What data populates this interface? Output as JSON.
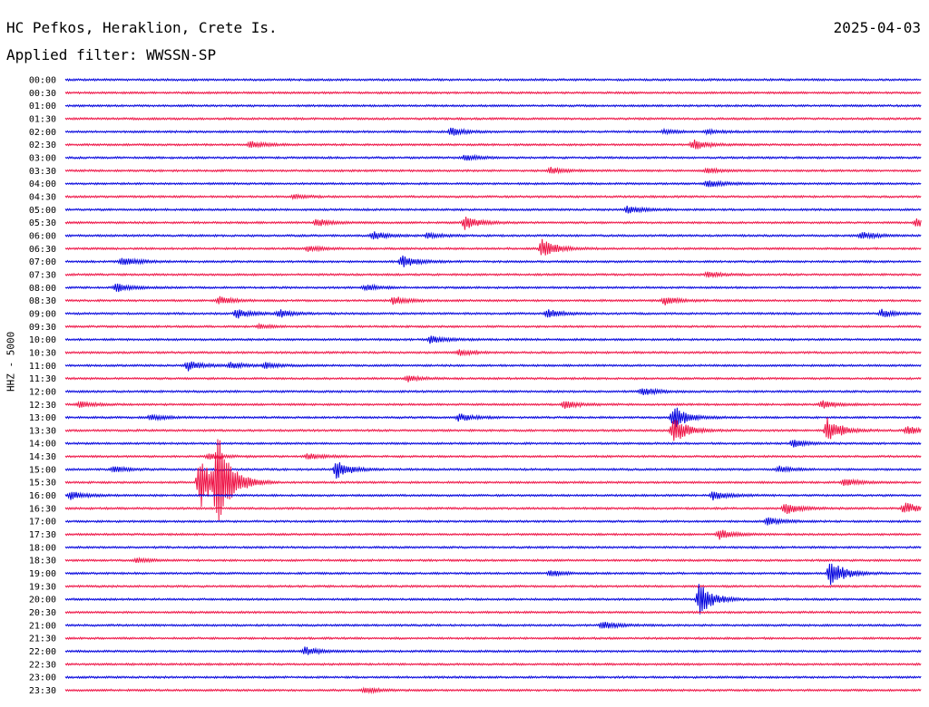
{
  "header": {
    "station": "HC Pefkos, Heraklion, Crete Is.",
    "date": "2025-04-03",
    "filter": "Applied filter: WWSSN-SP"
  },
  "colors": {
    "trace_a": "#0000dd",
    "trace_b": "#ee1144"
  },
  "chart_data": {
    "type": "line",
    "ylabel": "HHZ - 5000",
    "row_labels": [
      "00:00",
      "00:30",
      "01:00",
      "01:30",
      "02:00",
      "02:30",
      "03:00",
      "03:30",
      "04:00",
      "04:30",
      "05:00",
      "05:30",
      "06:00",
      "06:30",
      "07:00",
      "07:30",
      "08:00",
      "08:30",
      "09:00",
      "09:30",
      "10:00",
      "10:30",
      "11:00",
      "11:30",
      "12:00",
      "12:30",
      "13:00",
      "13:30",
      "14:00",
      "14:30",
      "15:00",
      "15:30",
      "16:00",
      "16:30",
      "17:00",
      "17:30",
      "18:00",
      "18:30",
      "19:00",
      "19:30",
      "20:00",
      "20:30",
      "21:00",
      "21:30",
      "22:00",
      "22:30",
      "23:00",
      "23:30"
    ],
    "row_minutes": 30,
    "events": [
      {
        "row": 4,
        "minute": 13.5,
        "amp": 4
      },
      {
        "row": 4,
        "minute": 21.0,
        "amp": 2
      },
      {
        "row": 4,
        "minute": 22.5,
        "amp": 2
      },
      {
        "row": 5,
        "minute": 6.5,
        "amp": 4
      },
      {
        "row": 5,
        "minute": 22.0,
        "amp": 5
      },
      {
        "row": 6,
        "minute": 14.0,
        "amp": 3
      },
      {
        "row": 7,
        "minute": 17.0,
        "amp": 3
      },
      {
        "row": 7,
        "minute": 22.5,
        "amp": 3
      },
      {
        "row": 8,
        "minute": 22.5,
        "amp": 4
      },
      {
        "row": 9,
        "minute": 8.0,
        "amp": 2
      },
      {
        "row": 10,
        "minute": 19.7,
        "amp": 4
      },
      {
        "row": 11,
        "minute": 8.8,
        "amp": 4
      },
      {
        "row": 11,
        "minute": 14.0,
        "amp": 7
      },
      {
        "row": 11,
        "minute": 29.8,
        "amp": 4
      },
      {
        "row": 12,
        "minute": 10.8,
        "amp": 4
      },
      {
        "row": 12,
        "minute": 12.7,
        "amp": 3
      },
      {
        "row": 12,
        "minute": 27.9,
        "amp": 4
      },
      {
        "row": 13,
        "minute": 8.5,
        "amp": 3
      },
      {
        "row": 13,
        "minute": 16.7,
        "amp": 10
      },
      {
        "row": 14,
        "minute": 2.0,
        "amp": 5
      },
      {
        "row": 14,
        "minute": 11.8,
        "amp": 6
      },
      {
        "row": 15,
        "minute": 22.5,
        "amp": 3
      },
      {
        "row": 16,
        "minute": 1.8,
        "amp": 4
      },
      {
        "row": 16,
        "minute": 10.5,
        "amp": 3
      },
      {
        "row": 17,
        "minute": 5.4,
        "amp": 4
      },
      {
        "row": 17,
        "minute": 11.5,
        "amp": 4
      },
      {
        "row": 17,
        "minute": 21.0,
        "amp": 4
      },
      {
        "row": 18,
        "minute": 6.0,
        "amp": 5
      },
      {
        "row": 18,
        "minute": 7.5,
        "amp": 4
      },
      {
        "row": 18,
        "minute": 16.9,
        "amp": 4
      },
      {
        "row": 18,
        "minute": 28.6,
        "amp": 4
      },
      {
        "row": 19,
        "minute": 6.8,
        "amp": 2
      },
      {
        "row": 20,
        "minute": 12.8,
        "amp": 4
      },
      {
        "row": 21,
        "minute": 13.8,
        "amp": 3
      },
      {
        "row": 22,
        "minute": 4.3,
        "amp": 5
      },
      {
        "row": 22,
        "minute": 5.8,
        "amp": 3
      },
      {
        "row": 22,
        "minute": 7.0,
        "amp": 3
      },
      {
        "row": 23,
        "minute": 12.0,
        "amp": 3
      },
      {
        "row": 24,
        "minute": 20.2,
        "amp": 4
      },
      {
        "row": 25,
        "minute": 0.5,
        "amp": 3
      },
      {
        "row": 25,
        "minute": 17.5,
        "amp": 4
      },
      {
        "row": 25,
        "minute": 26.5,
        "amp": 4
      },
      {
        "row": 26,
        "minute": 3.0,
        "amp": 3
      },
      {
        "row": 26,
        "minute": 13.8,
        "amp": 4
      },
      {
        "row": 26,
        "minute": 21.3,
        "amp": 13
      },
      {
        "row": 27,
        "minute": 21.3,
        "amp": 14
      },
      {
        "row": 27,
        "minute": 26.7,
        "amp": 13
      },
      {
        "row": 27,
        "minute": 29.5,
        "amp": 4
      },
      {
        "row": 28,
        "minute": 25.5,
        "amp": 4
      },
      {
        "row": 29,
        "minute": 5.0,
        "amp": 3
      },
      {
        "row": 29,
        "minute": 8.5,
        "amp": 3
      },
      {
        "row": 30,
        "minute": 1.7,
        "amp": 3
      },
      {
        "row": 30,
        "minute": 9.5,
        "amp": 9
      },
      {
        "row": 30,
        "minute": 25.0,
        "amp": 3
      },
      {
        "row": 31,
        "minute": 4.7,
        "amp": 28
      },
      {
        "row": 31,
        "minute": 5.3,
        "amp": 50
      },
      {
        "row": 31,
        "minute": 27.3,
        "amp": 4
      },
      {
        "row": 32,
        "minute": 0.2,
        "amp": 4
      },
      {
        "row": 32,
        "minute": 22.7,
        "amp": 5
      },
      {
        "row": 33,
        "minute": 25.2,
        "amp": 6
      },
      {
        "row": 33,
        "minute": 29.4,
        "amp": 6
      },
      {
        "row": 34,
        "minute": 24.6,
        "amp": 4
      },
      {
        "row": 35,
        "minute": 22.9,
        "amp": 5
      },
      {
        "row": 37,
        "minute": 2.5,
        "amp": 2
      },
      {
        "row": 38,
        "minute": 17.0,
        "amp": 3
      },
      {
        "row": 38,
        "minute": 26.8,
        "amp": 14
      },
      {
        "row": 40,
        "minute": 22.2,
        "amp": 17
      },
      {
        "row": 42,
        "minute": 18.8,
        "amp": 4
      },
      {
        "row": 44,
        "minute": 8.4,
        "amp": 4
      },
      {
        "row": 47,
        "minute": 10.5,
        "amp": 3
      }
    ]
  }
}
